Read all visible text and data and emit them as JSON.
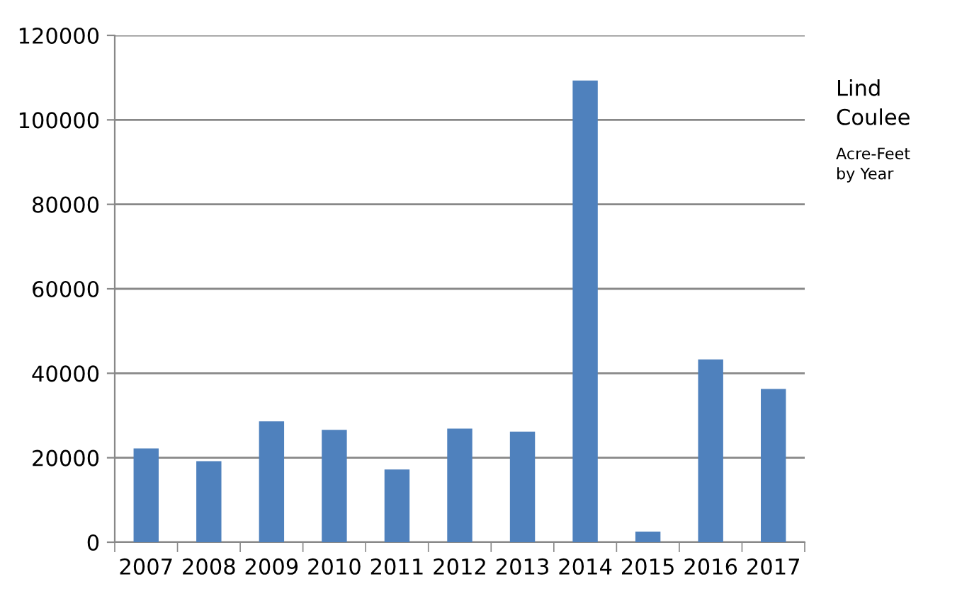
{
  "chart_data": {
    "type": "bar",
    "title": "Lind\nCoulee",
    "subtitle": "Acre-Feet\nby Year",
    "categories": [
      "2007",
      "2008",
      "2009",
      "2010",
      "2011",
      "2012",
      "2013",
      "2014",
      "2015",
      "2016",
      "2017"
    ],
    "values": [
      22200,
      19200,
      28600,
      26600,
      17200,
      26900,
      26200,
      109300,
      2500,
      43300,
      36300
    ],
    "color": "#4f81bd",
    "ylim": [
      0,
      120000
    ],
    "yticks": [
      0,
      20000,
      40000,
      60000,
      80000,
      100000,
      120000
    ],
    "grid": "y",
    "legend": false
  }
}
